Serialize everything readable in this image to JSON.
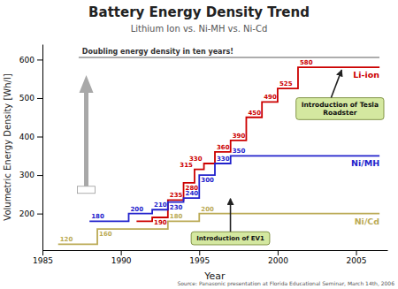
{
  "chart_data": {
    "type": "line",
    "title": "Battery Energy Density Trend",
    "subtitle": "Lithium Ion vs. Ni-MH vs. Ni-Cd",
    "xlabel": "Year",
    "ylabel": "Volumetric Energy Density [Wh/l]",
    "xlim": [
      1985,
      2007
    ],
    "xticks": [
      1985,
      1990,
      1995,
      2000,
      2005
    ],
    "ylim": [
      105,
      640
    ],
    "yticks": [
      200,
      300,
      400,
      500,
      600
    ],
    "grid": false,
    "line_style": "steps",
    "data_labels": true,
    "series": [
      {
        "name": "Li-ion",
        "color": "#cc0000",
        "x": [
          1991.0,
          1992.0,
          1993.0,
          1994.0,
          1994.7,
          1995.3,
          1996.0,
          1997.0,
          1998.0,
          1999.0,
          2000.0,
          2001.3,
          2006.5
        ],
        "values": [
          180,
          190,
          235,
          280,
          315,
          330,
          360,
          390,
          450,
          490,
          525,
          580,
          580
        ],
        "value_labels": [
          null,
          "190",
          "235",
          "280",
          "315",
          "330",
          "360",
          "390",
          "450",
          "490",
          "525",
          "580",
          null
        ]
      },
      {
        "name": "Ni/MH",
        "color": "#2222cc",
        "x": [
          1988.0,
          1990.5,
          1992.0,
          1993.0,
          1994.0,
          1995.0,
          1996.0,
          1997.0,
          2006.5
        ],
        "values": [
          180,
          200,
          210,
          230,
          240,
          300,
          330,
          350,
          350
        ],
        "value_labels": [
          "180",
          "200",
          "210",
          "230",
          "240",
          "300",
          "330",
          "350",
          null
        ]
      },
      {
        "name": "Ni/Cd",
        "color": "#bbaa55",
        "x": [
          1986.0,
          1988.5,
          1993.0,
          1995.0,
          2006.5
        ],
        "values": [
          120,
          160,
          180,
          200,
          200
        ],
        "value_labels": [
          "120",
          "160",
          "180",
          "200",
          null
        ]
      }
    ],
    "annotations": [
      "Doubling energy density in ten years!",
      "Introduction of EV1",
      "Introduction of Tesla\nRoadster",
      "Source: Panasonic presentation at Florida Educational Seminar, March 14th, 2006"
    ]
  }
}
